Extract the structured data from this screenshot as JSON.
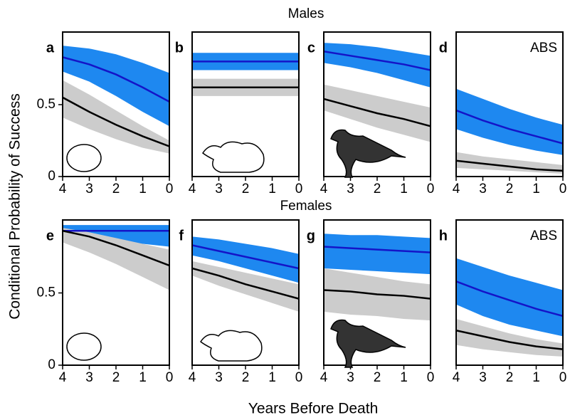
{
  "figure": {
    "row_titles": [
      "Males",
      "Females"
    ],
    "xlabel": "Years Before Death",
    "ylabel": "Conditional Probability of Success"
  },
  "chart_data": [
    {
      "type": "line",
      "label": "a",
      "x": [
        4,
        3,
        2,
        1,
        0
      ],
      "xlim": [
        4,
        0
      ],
      "ylim": [
        0,
        1
      ],
      "xticks": [
        4,
        3,
        2,
        1,
        0
      ],
      "yticks": [
        0,
        0.5
      ],
      "bands": [
        {
          "color": "#1e88f0",
          "upper": [
            0.91,
            0.89,
            0.85,
            0.79,
            0.72
          ],
          "lower": [
            0.73,
            0.66,
            0.56,
            0.45,
            0.35
          ]
        },
        {
          "color": "#cccccc",
          "upper": [
            0.67,
            0.57,
            0.46,
            0.35,
            0.25
          ],
          "lower": [
            0.41,
            0.33,
            0.26,
            0.2,
            0.16
          ]
        }
      ],
      "series": [
        {
          "color": "#1414c8",
          "values": [
            0.83,
            0.78,
            0.71,
            0.62,
            0.52
          ]
        },
        {
          "color": "#000000",
          "values": [
            0.55,
            0.45,
            0.36,
            0.28,
            0.21
          ]
        }
      ]
    },
    {
      "type": "line",
      "label": "b",
      "x": [
        4,
        3,
        2,
        1,
        0
      ],
      "xlim": [
        4,
        0
      ],
      "ylim": [
        0,
        1
      ],
      "xticks": [
        4,
        3,
        2,
        1,
        0
      ],
      "bands": [
        {
          "color": "#1e88f0",
          "upper": [
            0.86,
            0.86,
            0.86,
            0.86,
            0.86
          ],
          "lower": [
            0.74,
            0.74,
            0.74,
            0.74,
            0.74
          ]
        },
        {
          "color": "#cccccc",
          "upper": [
            0.68,
            0.68,
            0.68,
            0.68,
            0.68
          ],
          "lower": [
            0.56,
            0.56,
            0.56,
            0.56,
            0.56
          ]
        }
      ],
      "series": [
        {
          "color": "#1414c8",
          "values": [
            0.8,
            0.8,
            0.8,
            0.8,
            0.8
          ]
        },
        {
          "color": "#000000",
          "values": [
            0.62,
            0.62,
            0.62,
            0.62,
            0.62
          ]
        }
      ]
    },
    {
      "type": "line",
      "label": "c",
      "x": [
        4,
        3,
        2,
        1,
        0
      ],
      "xlim": [
        4,
        0
      ],
      "ylim": [
        0,
        1
      ],
      "xticks": [
        4,
        3,
        2,
        1,
        0
      ],
      "bands": [
        {
          "color": "#1e88f0",
          "upper": [
            0.93,
            0.92,
            0.9,
            0.87,
            0.84
          ],
          "lower": [
            0.79,
            0.76,
            0.72,
            0.67,
            0.62
          ]
        },
        {
          "color": "#cccccc",
          "upper": [
            0.64,
            0.6,
            0.56,
            0.52,
            0.48
          ],
          "lower": [
            0.46,
            0.4,
            0.34,
            0.29,
            0.24
          ]
        }
      ],
      "series": [
        {
          "color": "#1414c8",
          "values": [
            0.87,
            0.84,
            0.81,
            0.78,
            0.74
          ]
        },
        {
          "color": "#000000",
          "values": [
            0.54,
            0.49,
            0.44,
            0.4,
            0.35
          ]
        }
      ]
    },
    {
      "type": "line",
      "label": "d",
      "annotation": "ABS",
      "x": [
        4,
        3,
        2,
        1,
        0
      ],
      "xlim": [
        4,
        0
      ],
      "ylim": [
        0,
        1
      ],
      "xticks": [
        4,
        3,
        2,
        1,
        0
      ],
      "bands": [
        {
          "color": "#1e88f0",
          "upper": [
            0.61,
            0.54,
            0.47,
            0.41,
            0.36
          ],
          "lower": [
            0.33,
            0.27,
            0.22,
            0.18,
            0.15
          ]
        },
        {
          "color": "#cccccc",
          "upper": [
            0.17,
            0.14,
            0.12,
            0.1,
            0.08
          ],
          "lower": [
            0.06,
            0.05,
            0.04,
            0.03,
            0.02
          ]
        }
      ],
      "series": [
        {
          "color": "#1414c8",
          "values": [
            0.46,
            0.39,
            0.33,
            0.28,
            0.23
          ]
        },
        {
          "color": "#000000",
          "values": [
            0.11,
            0.09,
            0.07,
            0.05,
            0.04
          ]
        }
      ]
    },
    {
      "type": "line",
      "label": "e",
      "x": [
        4,
        3,
        2,
        1,
        0
      ],
      "xlim": [
        4,
        0
      ],
      "ylim": [
        0,
        1
      ],
      "xticks": [
        4,
        3,
        2,
        1,
        0
      ],
      "yticks": [
        0,
        0.5
      ],
      "bands": [
        {
          "color": "#1e88f0",
          "upper": [
            0.97,
            0.97,
            0.97,
            0.97,
            0.97
          ],
          "lower": [
            0.87,
            0.86,
            0.85,
            0.84,
            0.82
          ]
        },
        {
          "color": "#cccccc",
          "upper": [
            0.95,
            0.92,
            0.88,
            0.84,
            0.8
          ],
          "lower": [
            0.85,
            0.78,
            0.7,
            0.61,
            0.52
          ]
        }
      ],
      "series": [
        {
          "color": "#1414c8",
          "values": [
            0.93,
            0.93,
            0.93,
            0.93,
            0.93
          ]
        },
        {
          "color": "#000000",
          "values": [
            0.93,
            0.89,
            0.83,
            0.76,
            0.69
          ]
        }
      ]
    },
    {
      "type": "line",
      "label": "f",
      "x": [
        4,
        3,
        2,
        1,
        0
      ],
      "xlim": [
        4,
        0
      ],
      "ylim": [
        0,
        1
      ],
      "xticks": [
        4,
        3,
        2,
        1,
        0
      ],
      "bands": [
        {
          "color": "#1e88f0",
          "upper": [
            0.89,
            0.87,
            0.84,
            0.81,
            0.77
          ],
          "lower": [
            0.76,
            0.72,
            0.67,
            0.62,
            0.57
          ]
        },
        {
          "color": "#cccccc",
          "upper": [
            0.72,
            0.68,
            0.64,
            0.6,
            0.56
          ],
          "lower": [
            0.62,
            0.55,
            0.49,
            0.43,
            0.37
          ]
        }
      ],
      "series": [
        {
          "color": "#1414c8",
          "values": [
            0.83,
            0.79,
            0.75,
            0.71,
            0.67
          ]
        },
        {
          "color": "#000000",
          "values": [
            0.67,
            0.62,
            0.56,
            0.51,
            0.46
          ]
        }
      ]
    },
    {
      "type": "line",
      "label": "g",
      "x": [
        4,
        3,
        2,
        1,
        0
      ],
      "xlim": [
        4,
        0
      ],
      "ylim": [
        0,
        1
      ],
      "xticks": [
        4,
        3,
        2,
        1,
        0
      ],
      "bands": [
        {
          "color": "#1e88f0",
          "upper": [
            0.91,
            0.9,
            0.9,
            0.89,
            0.88
          ],
          "lower": [
            0.67,
            0.66,
            0.65,
            0.64,
            0.63
          ]
        },
        {
          "color": "#cccccc",
          "upper": [
            0.67,
            0.64,
            0.61,
            0.58,
            0.56
          ],
          "lower": [
            0.37,
            0.35,
            0.34,
            0.32,
            0.31
          ]
        }
      ],
      "series": [
        {
          "color": "#1414c8",
          "values": [
            0.82,
            0.81,
            0.8,
            0.79,
            0.78
          ]
        },
        {
          "color": "#000000",
          "values": [
            0.52,
            0.51,
            0.49,
            0.48,
            0.46
          ]
        }
      ]
    },
    {
      "type": "line",
      "label": "h",
      "annotation": "ABS",
      "x": [
        4,
        3,
        2,
        1,
        0
      ],
      "xlim": [
        4,
        0
      ],
      "ylim": [
        0,
        1
      ],
      "xticks": [
        4,
        3,
        2,
        1,
        0
      ],
      "bands": [
        {
          "color": "#1e88f0",
          "upper": [
            0.74,
            0.68,
            0.62,
            0.57,
            0.52
          ],
          "lower": [
            0.42,
            0.34,
            0.28,
            0.24,
            0.2
          ]
        },
        {
          "color": "#cccccc",
          "upper": [
            0.32,
            0.27,
            0.22,
            0.18,
            0.15
          ],
          "lower": [
            0.14,
            0.11,
            0.09,
            0.07,
            0.06
          ]
        }
      ],
      "series": [
        {
          "color": "#1414c8",
          "values": [
            0.58,
            0.51,
            0.45,
            0.39,
            0.34
          ]
        },
        {
          "color": "#000000",
          "values": [
            0.24,
            0.2,
            0.16,
            0.13,
            0.11
          ]
        }
      ]
    }
  ]
}
